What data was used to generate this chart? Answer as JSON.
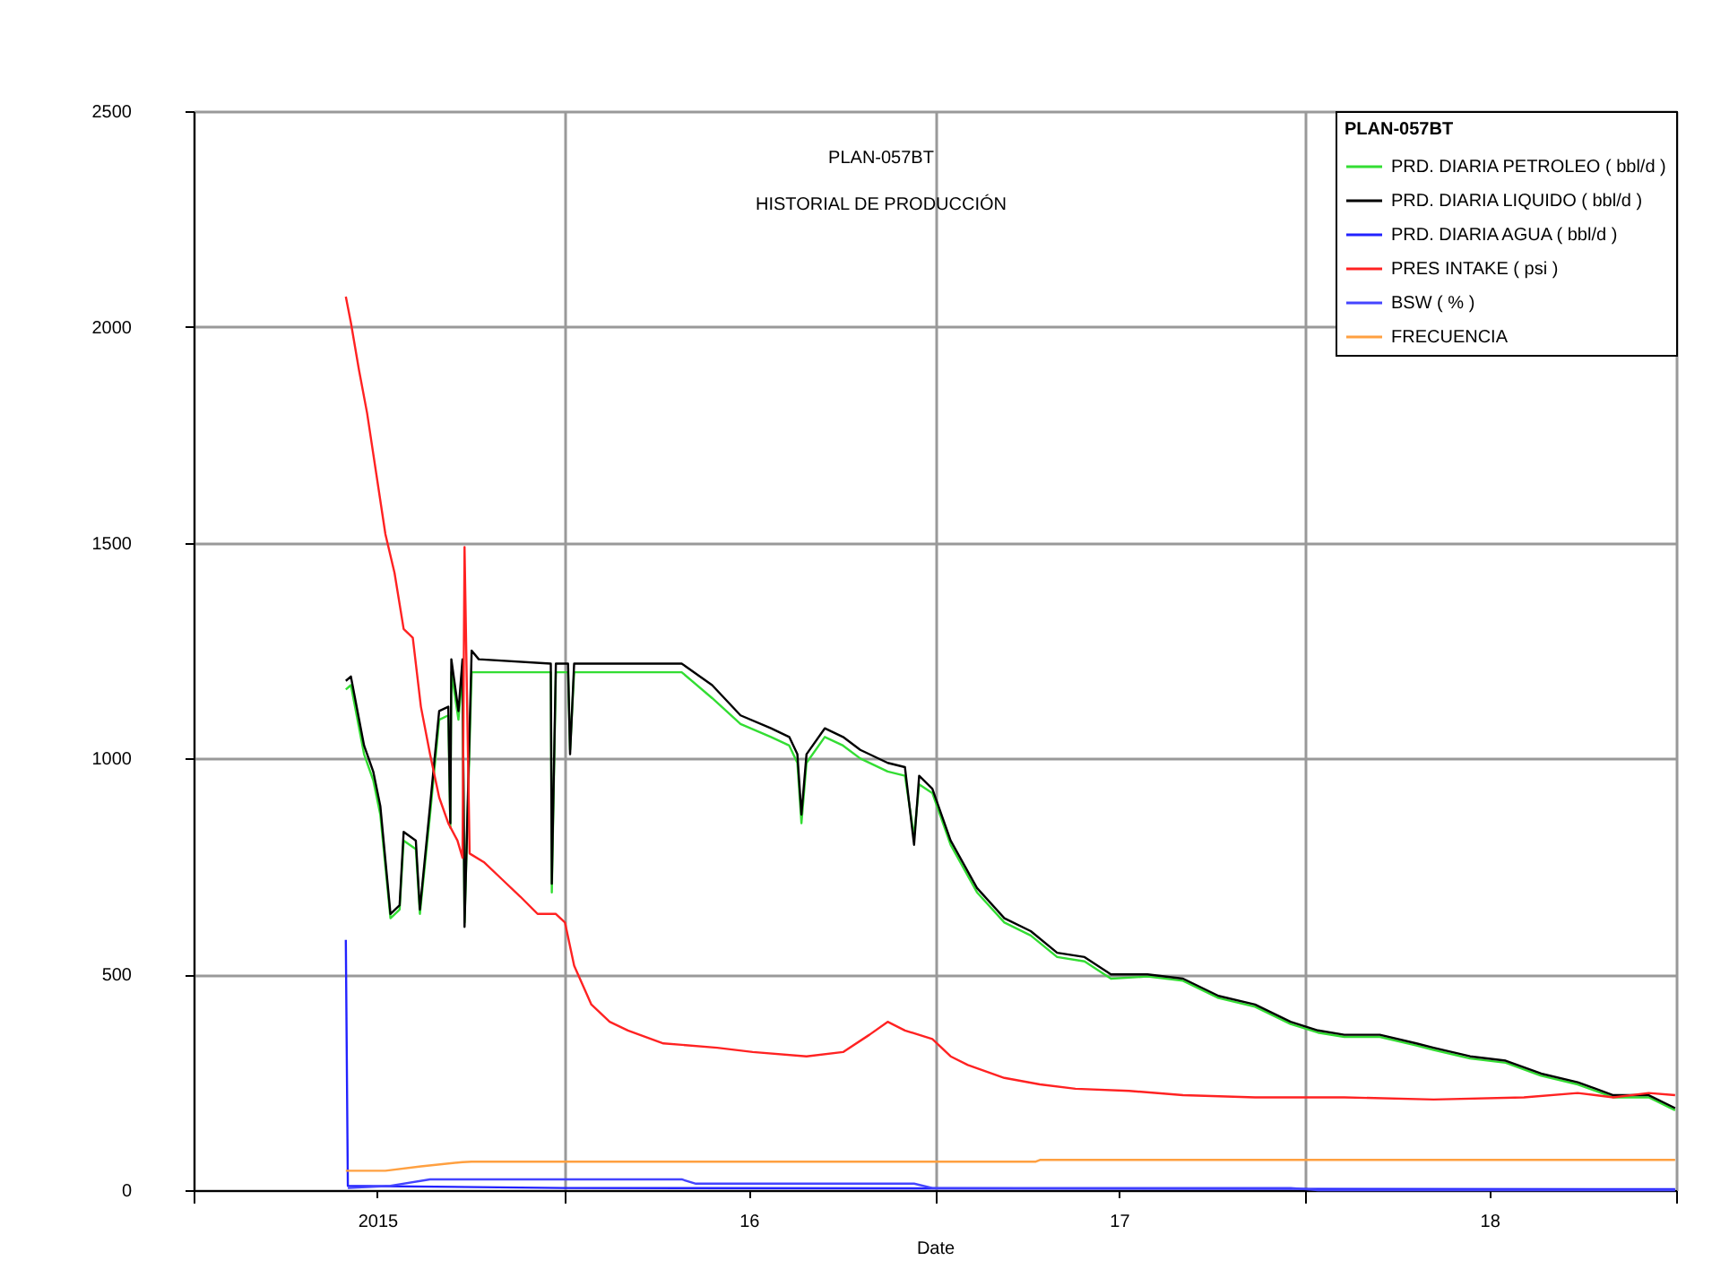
{
  "chart_data": {
    "type": "line",
    "title": "PLAN-057BT",
    "subtitle": "HISTORIAL DE PRODUCCIÓN",
    "xlabel": "Date",
    "legend_title": "PLAN-057BT",
    "legend": "top right",
    "grid": true,
    "marker": "none",
    "line_style": "solid",
    "xlim": [
      "2015-01-01",
      "2019-01-01"
    ],
    "xticks": [
      {
        "value": "2015-01-01",
        "label": null
      },
      {
        "value": "2015-07-01",
        "label": "2015"
      },
      {
        "value": "2016-01-01",
        "label": null
      },
      {
        "value": "2016-07-01",
        "label": "16"
      },
      {
        "value": "2017-01-01",
        "label": null
      },
      {
        "value": "2017-07-01",
        "label": "17"
      },
      {
        "value": "2018-01-01",
        "label": null
      },
      {
        "value": "2018-07-01",
        "label": "18"
      },
      {
        "value": "2019-01-01",
        "label": null
      }
    ],
    "ylim": [
      0,
      2500
    ],
    "yticks": [
      0,
      500,
      1000,
      1500,
      2000,
      2500
    ],
    "series": [
      {
        "name": "PRD. DIARIA PETROLEO ( bbl/d )",
        "color": "#33dd33",
        "x": [
          "2015-05-31",
          "2015-06-05",
          "2015-06-18",
          "2015-06-27",
          "2015-07-04",
          "2015-07-14",
          "2015-07-23",
          "2015-07-27",
          "2015-08-08",
          "2015-08-12",
          "2015-08-22",
          "2015-08-31",
          "2015-09-09",
          "2015-09-11",
          "2015-09-12",
          "2015-09-19",
          "2015-09-23",
          "2015-09-25",
          "2015-10-02",
          "2015-10-09",
          "2015-12-19",
          "2015-12-20",
          "2015-12-24",
          "2016-01-05",
          "2016-01-07",
          "2016-01-11",
          "2016-04-26",
          "2016-05-26",
          "2016-06-23",
          "2016-07-23",
          "2016-08-10",
          "2016-08-18",
          "2016-08-22",
          "2016-08-27",
          "2016-09-14",
          "2016-10-02",
          "2016-10-19",
          "2016-11-15",
          "2016-12-02",
          "2016-12-11",
          "2016-12-16",
          "2016-12-29",
          "2017-01-16",
          "2017-02-11",
          "2017-03-10",
          "2017-04-05",
          "2017-05-01",
          "2017-05-28",
          "2017-06-23",
          "2017-07-29",
          "2017-09-02",
          "2017-10-07",
          "2017-11-12",
          "2017-12-17",
          "2018-01-13",
          "2018-02-08",
          "2018-03-15",
          "2018-04-20",
          "2018-05-07",
          "2018-06-12",
          "2018-07-17",
          "2018-08-21",
          "2018-09-26",
          "2018-10-31",
          "2018-12-05",
          "2018-12-31"
        ],
        "values": [
          1160,
          1170,
          1010,
          950,
          870,
          630,
          650,
          810,
          790,
          640,
          870,
          1090,
          1100,
          840,
          1200,
          1090,
          1200,
          620,
          1200,
          1200,
          1200,
          690,
          1200,
          1200,
          1020,
          1200,
          1200,
          1140,
          1080,
          1050,
          1030,
          990,
          850,
          990,
          1050,
          1030,
          1000,
          970,
          960,
          820,
          940,
          920,
          800,
          690,
          620,
          590,
          540,
          530,
          490,
          495,
          485,
          445,
          425,
          385,
          365,
          355,
          355,
          335,
          325,
          305,
          295,
          265,
          245,
          215,
          215,
          185
        ]
      },
      {
        "name": "PRD. DIARIA LIQUIDO ( bbl/d )",
        "color": "#000000",
        "x": [
          "2015-05-31",
          "2015-06-05",
          "2015-06-18",
          "2015-06-27",
          "2015-07-04",
          "2015-07-14",
          "2015-07-23",
          "2015-07-27",
          "2015-08-08",
          "2015-08-12",
          "2015-08-22",
          "2015-08-31",
          "2015-09-09",
          "2015-09-11",
          "2015-09-12",
          "2015-09-19",
          "2015-09-23",
          "2015-09-25",
          "2015-10-02",
          "2015-10-09",
          "2015-12-19",
          "2015-12-20",
          "2015-12-24",
          "2016-01-05",
          "2016-01-07",
          "2016-01-11",
          "2016-04-26",
          "2016-05-26",
          "2016-06-23",
          "2016-07-23",
          "2016-08-10",
          "2016-08-18",
          "2016-08-22",
          "2016-08-27",
          "2016-09-14",
          "2016-10-02",
          "2016-10-19",
          "2016-11-15",
          "2016-12-02",
          "2016-12-11",
          "2016-12-16",
          "2016-12-29",
          "2017-01-16",
          "2017-02-11",
          "2017-03-10",
          "2017-04-05",
          "2017-05-01",
          "2017-05-28",
          "2017-06-23",
          "2017-07-29",
          "2017-09-02",
          "2017-10-07",
          "2017-11-12",
          "2017-12-17",
          "2018-01-13",
          "2018-02-08",
          "2018-03-15",
          "2018-04-20",
          "2018-05-07",
          "2018-06-12",
          "2018-07-17",
          "2018-08-21",
          "2018-09-26",
          "2018-10-31",
          "2018-12-05",
          "2018-12-31"
        ],
        "values": [
          1180,
          1190,
          1030,
          970,
          890,
          640,
          660,
          830,
          810,
          650,
          890,
          1110,
          1120,
          850,
          1230,
          1110,
          1230,
          610,
          1250,
          1230,
          1220,
          710,
          1220,
          1220,
          1010,
          1220,
          1220,
          1170,
          1100,
          1070,
          1050,
          1010,
          870,
          1010,
          1070,
          1050,
          1020,
          990,
          980,
          800,
          960,
          930,
          810,
          700,
          630,
          600,
          550,
          540,
          500,
          500,
          490,
          450,
          430,
          390,
          370,
          360,
          360,
          340,
          330,
          310,
          300,
          270,
          250,
          220,
          220,
          190
        ]
      },
      {
        "name": "PRD. DIARIA AGUA ( bbl/d )",
        "color": "#2222ff",
        "x": [
          "2015-05-31",
          "2015-06-02",
          "2016-01-01",
          "2018-12-31"
        ],
        "values": [
          580,
          10,
          5,
          2
        ]
      },
      {
        "name": "PRES INTAKE ( psi )",
        "color": "#ff2222",
        "x": [
          "2015-05-31",
          "2015-06-05",
          "2015-06-13",
          "2015-06-21",
          "2015-06-30",
          "2015-07-09",
          "2015-07-18",
          "2015-07-27",
          "2015-08-05",
          "2015-08-13",
          "2015-08-22",
          "2015-08-31",
          "2015-09-09",
          "2015-09-18",
          "2015-09-23",
          "2015-09-25",
          "2015-09-30",
          "2015-10-14",
          "2015-11-01",
          "2015-11-19",
          "2015-12-06",
          "2015-12-24",
          "2016-01-02",
          "2016-01-11",
          "2016-01-28",
          "2016-02-15",
          "2016-03-04",
          "2016-04-08",
          "2016-05-31",
          "2016-07-05",
          "2016-08-27",
          "2016-10-02",
          "2016-10-28",
          "2016-11-15",
          "2016-12-02",
          "2016-12-29",
          "2017-01-16",
          "2017-02-02",
          "2017-03-10",
          "2017-04-14",
          "2017-05-19",
          "2017-07-11",
          "2017-09-02",
          "2017-11-12",
          "2018-02-08",
          "2018-05-07",
          "2018-08-04",
          "2018-09-26",
          "2018-10-31",
          "2018-12-05",
          "2018-12-31"
        ],
        "values": [
          2070,
          2010,
          1900,
          1800,
          1660,
          1520,
          1430,
          1300,
          1280,
          1120,
          1010,
          910,
          850,
          810,
          770,
          1490,
          780,
          760,
          720,
          680,
          640,
          640,
          620,
          520,
          430,
          390,
          370,
          340,
          330,
          320,
          310,
          320,
          360,
          390,
          370,
          350,
          310,
          290,
          260,
          245,
          235,
          230,
          220,
          215,
          215,
          210,
          215,
          225,
          215,
          225,
          220
        ]
      },
      {
        "name": "BSW ( % )",
        "color": "#4444ff",
        "x": [
          "2015-06-02",
          "2015-07-14",
          "2015-08-22",
          "2016-04-26",
          "2016-05-10",
          "2016-12-11",
          "2016-12-29",
          "2017-12-17",
          "2018-01-13",
          "2018-12-31"
        ],
        "values": [
          5,
          10,
          25,
          25,
          15,
          15,
          5,
          5,
          0,
          0
        ]
      },
      {
        "name": "FRECUENCIA",
        "color": "#ffa040",
        "x": [
          "2015-05-31",
          "2015-07-09",
          "2015-08-13",
          "2015-09-23",
          "2015-10-02",
          "2017-04-10",
          "2017-04-14",
          "2018-12-31"
        ],
        "values": [
          45,
          45,
          55,
          65,
          66,
          66,
          70,
          70
        ]
      }
    ]
  }
}
